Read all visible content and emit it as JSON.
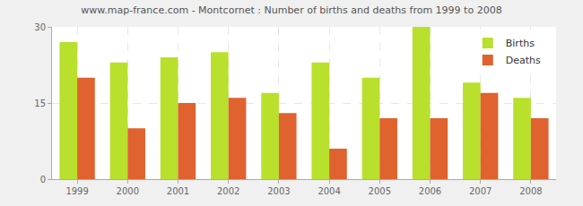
{
  "chart_data": {
    "type": "bar",
    "title": "www.map-france.com - Montcornet : Number of births and deaths from 1999 to 2008",
    "categories": [
      "1999",
      "2000",
      "2001",
      "2002",
      "2003",
      "2004",
      "2005",
      "2006",
      "2007",
      "2008"
    ],
    "series": [
      {
        "name": "Births",
        "color": "#b8e02c",
        "values": [
          27,
          23,
          24,
          25,
          17,
          23,
          20,
          30,
          19,
          16
        ]
      },
      {
        "name": "Deaths",
        "color": "#e0622f",
        "values": [
          20,
          10,
          15,
          16,
          13,
          6,
          12,
          12,
          17,
          12
        ]
      }
    ],
    "ylim": [
      0,
      30
    ],
    "yticks": [
      0,
      15,
      30
    ],
    "grid": true,
    "legend": "top right"
  }
}
